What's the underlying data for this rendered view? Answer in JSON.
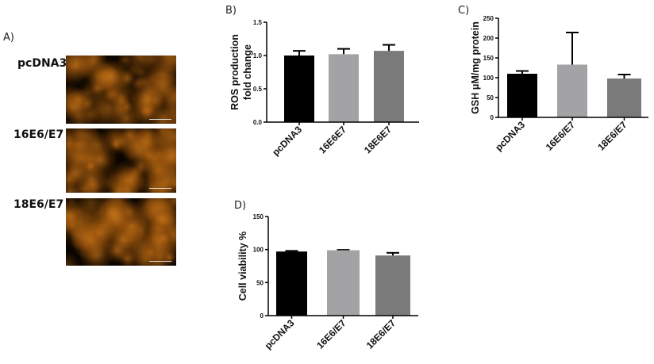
{
  "panel_a": {
    "label": "A)",
    "rows": [
      {
        "label": "pcDNA3",
        "seed": 1
      },
      {
        "label": "16E6/E7",
        "seed": 2
      },
      {
        "label": "18E6/E7",
        "seed": 3
      }
    ],
    "image_color": "#c8761a"
  },
  "chart_data": [
    {
      "panel": "B)",
      "type": "bar",
      "categories": [
        "pcDNA3",
        "16E6E7",
        "18E6E7"
      ],
      "values": [
        1.0,
        1.02,
        1.07
      ],
      "error_upper": [
        1.07,
        1.1,
        1.16
      ],
      "colors": [
        "#000000",
        "#a3a3a6",
        "#7a7a7a"
      ],
      "ylabel": [
        "ROS production",
        "fold change"
      ],
      "ylim": [
        0,
        1.5
      ],
      "yticks": [
        "0.0",
        "0.5",
        "1.0",
        "1.5"
      ],
      "grid": false
    },
    {
      "panel": "C)",
      "type": "bar",
      "categories": [
        "pcDNA3",
        "16E6/E7",
        "18E6/E7"
      ],
      "values": [
        110,
        133,
        98
      ],
      "error_upper": [
        117,
        214,
        108
      ],
      "colors": [
        "#000000",
        "#a3a3a6",
        "#7a7a7a"
      ],
      "ylabel": [
        "GSH μM/mg protein"
      ],
      "ylim": [
        0,
        250
      ],
      "yticks": [
        "0",
        "50",
        "100",
        "150",
        "200",
        "250"
      ],
      "grid": false
    },
    {
      "panel": "D)",
      "type": "bar",
      "categories": [
        "pcDNA3",
        "16E6/E7",
        "18E6/E7"
      ],
      "values": [
        97,
        99,
        91
      ],
      "error_upper": [
        98,
        99.5,
        95
      ],
      "colors": [
        "#000000",
        "#a3a3a6",
        "#7a7a7a"
      ],
      "ylabel": [
        "Cell viability %"
      ],
      "ylim": [
        0,
        150
      ],
      "yticks": [
        "0",
        "50",
        "100",
        "150"
      ],
      "grid": false
    }
  ]
}
